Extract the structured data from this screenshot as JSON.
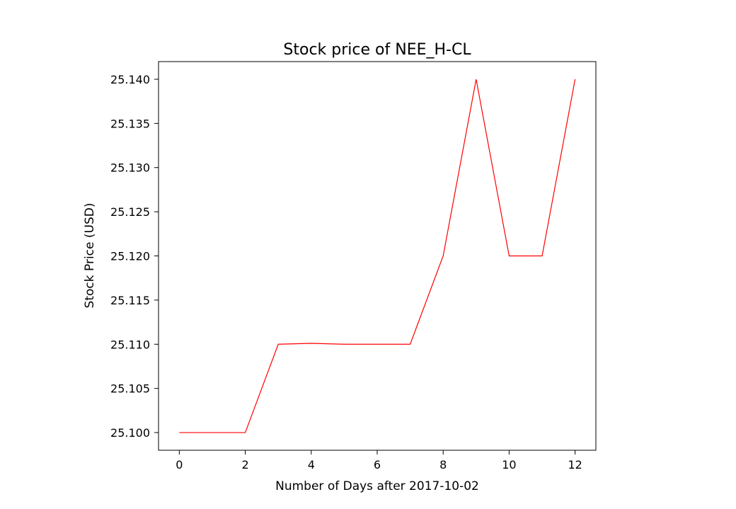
{
  "chart_data": {
    "type": "line",
    "title": "Stock price of NEE_H-CL",
    "xlabel": "Number of Days after 2017-10-02",
    "ylabel": "Stock Price (USD)",
    "x": [
      0,
      1,
      2,
      3,
      4,
      5,
      6,
      7,
      8,
      9,
      10,
      11,
      12
    ],
    "series": [
      {
        "values": [
          25.1,
          25.1,
          25.1,
          25.11,
          25.1101,
          25.11,
          25.11,
          25.11,
          25.12,
          25.14,
          25.12,
          25.12,
          25.14
        ],
        "color": "#ff0000"
      }
    ],
    "xlim": [
      -0.63,
      12.63
    ],
    "ylim": [
      25.098,
      25.142
    ],
    "xticks": [
      0,
      2,
      4,
      6,
      8,
      10,
      12
    ],
    "xtick_labels": [
      "0",
      "2",
      "4",
      "6",
      "8",
      "10",
      "12"
    ],
    "yticks": [
      25.1,
      25.105,
      25.11,
      25.115,
      25.12,
      25.125,
      25.13,
      25.135,
      25.14
    ],
    "ytick_labels": [
      "25.100",
      "25.105",
      "25.110",
      "25.115",
      "25.120",
      "25.125",
      "25.130",
      "25.135",
      "25.140"
    ],
    "grid": false,
    "legend": "none"
  }
}
